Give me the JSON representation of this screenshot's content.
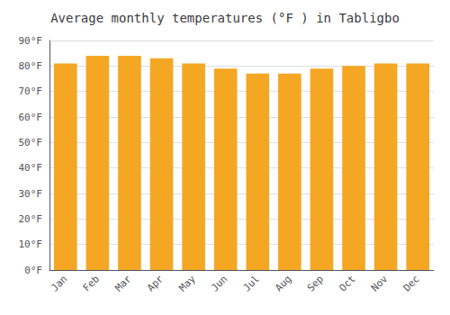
{
  "chart_data": {
    "type": "bar",
    "title": "Average monthly temperatures (°F ) in Tabligbo",
    "categories": [
      "Jan",
      "Feb",
      "Mar",
      "Apr",
      "May",
      "Jun",
      "Jul",
      "Aug",
      "Sep",
      "Oct",
      "Nov",
      "Dec"
    ],
    "values": [
      81,
      84,
      84,
      83,
      81,
      79,
      77,
      77,
      79,
      80,
      81,
      81
    ],
    "color": "#F5A623",
    "ylim": [
      0,
      90
    ],
    "yticks": [
      {
        "value": 0,
        "label": "0°F"
      },
      {
        "value": 10,
        "label": "10°F"
      },
      {
        "value": 20,
        "label": "20°F"
      },
      {
        "value": 30,
        "label": "30°F"
      },
      {
        "value": 40,
        "label": "40°F"
      },
      {
        "value": 50,
        "label": "50°F"
      },
      {
        "value": 60,
        "label": "60°F"
      },
      {
        "value": 70,
        "label": "70°F"
      },
      {
        "value": 80,
        "label": "80°F"
      },
      {
        "value": 90,
        "label": "90°F"
      }
    ],
    "grid": true
  }
}
